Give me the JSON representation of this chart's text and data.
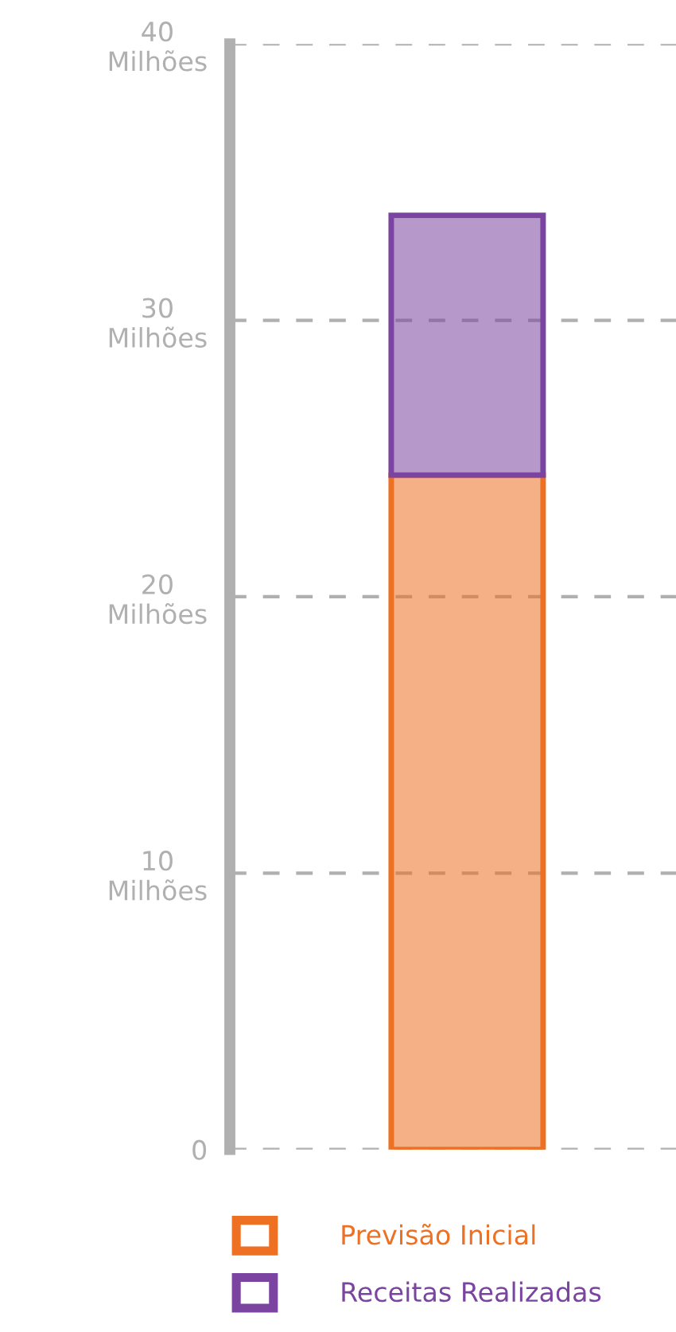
{
  "chart_data": {
    "type": "bar",
    "stacked": true,
    "categories": [
      null
    ],
    "series": [
      {
        "name": "Previsão Inicial",
        "color": "#ee7022",
        "values": [
          24.4
        ]
      },
      {
        "name": "Receitas Realizadas",
        "color": "#7a44a0",
        "values": [
          9.4
        ]
      }
    ],
    "ylim": [
      0,
      40
    ],
    "yticks": [
      0,
      {
        "value": 10,
        "label": "10\nMilhões"
      },
      {
        "value": 20,
        "label": "20\nMilhões"
      },
      {
        "value": 30,
        "label": "30\nMilhões"
      },
      {
        "value": 40,
        "label": "40\nMilhões"
      }
    ],
    "grid": "y",
    "legend": "bottom"
  }
}
